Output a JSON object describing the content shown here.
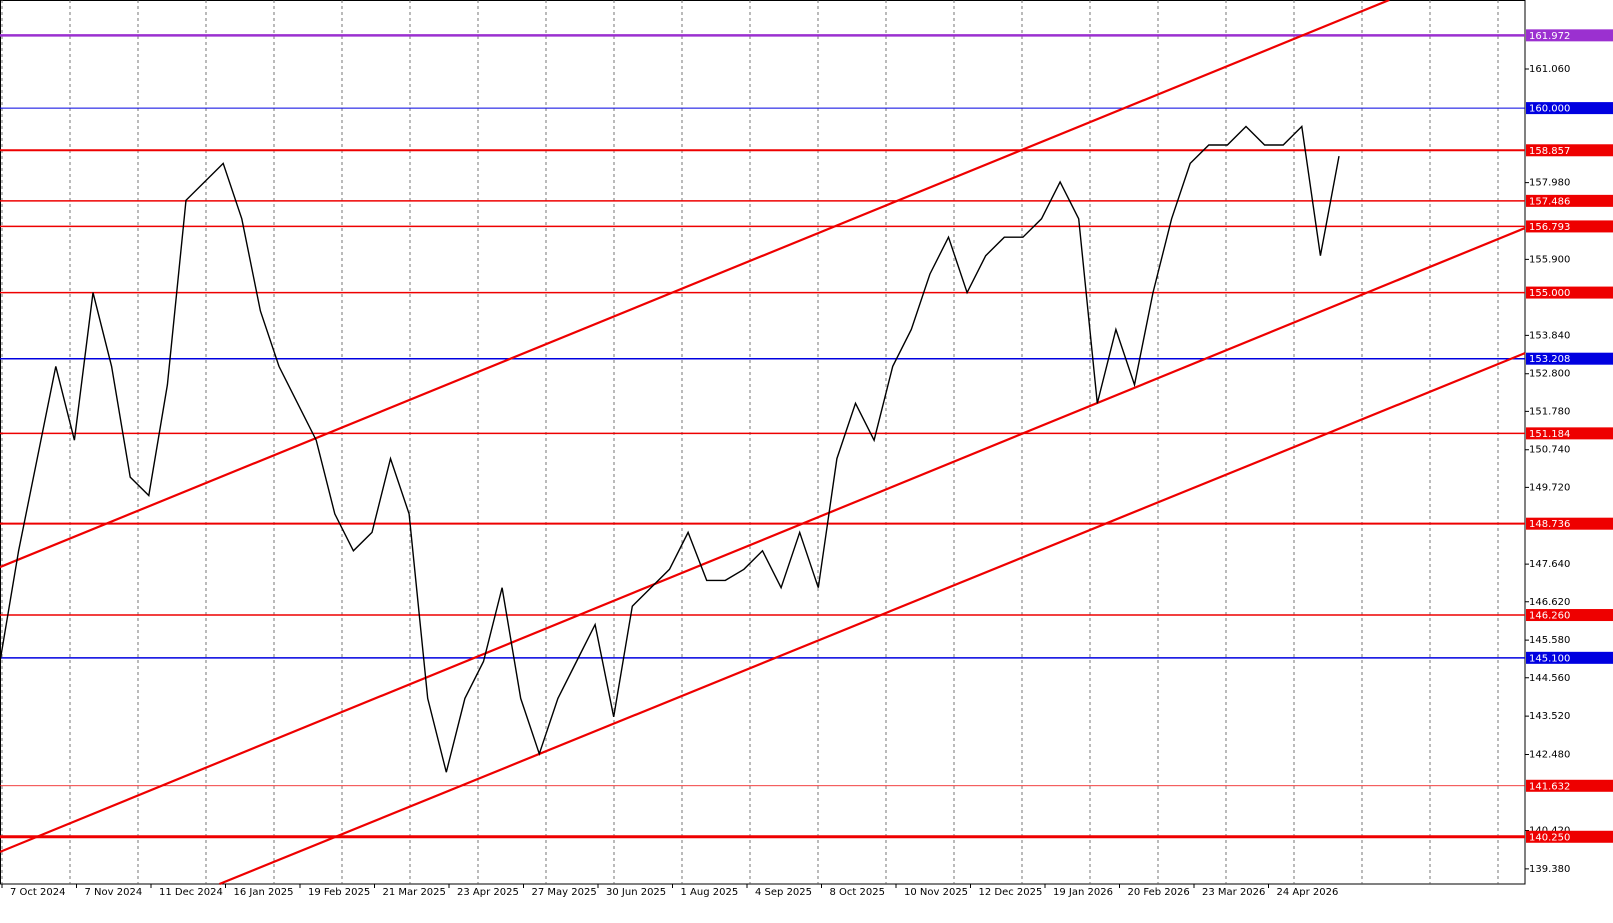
{
  "chart_data": {
    "type": "line",
    "grid": true,
    "line_color": "#000000",
    "x_labels": [
      "7 Oct 2024",
      "7 Nov 2024",
      "11 Dec 2024",
      "16 Jan 2025",
      "19 Feb 2025",
      "21 Mar 2025",
      "23 Apr 2025",
      "27 May 2025",
      "30 Jun 2025",
      "1 Aug 2025",
      "4 Sep 2025",
      "8 Oct 2025",
      "10 Nov 2025",
      "12 Dec 2025",
      "19 Jan 2026",
      "20 Feb 2026",
      "23 Mar 2026",
      "24 Apr 2026"
    ],
    "xlim": [
      0,
      82
    ],
    "ylim": [
      138.97,
      162.93
    ],
    "yticks": [
      {
        "value": 139.38,
        "label": "139.380"
      },
      {
        "value": 140.42,
        "label": "140.420"
      },
      {
        "value": 142.48,
        "label": "142.480"
      },
      {
        "value": 143.52,
        "label": "143.520"
      },
      {
        "value": 144.56,
        "label": "144.560"
      },
      {
        "value": 145.58,
        "label": "145.580"
      },
      {
        "value": 146.62,
        "label": "146.620"
      },
      {
        "value": 147.64,
        "label": "147.640"
      },
      {
        "value": 149.72,
        "label": "149.720"
      },
      {
        "value": 150.74,
        "label": "150.740"
      },
      {
        "value": 151.78,
        "label": "151.780"
      },
      {
        "value": 152.8,
        "label": "152.800"
      },
      {
        "value": 153.84,
        "label": "153.840"
      },
      {
        "value": 155.9,
        "label": "155.900"
      },
      {
        "value": 157.98,
        "label": "157.980"
      },
      {
        "value": 161.06,
        "label": "161.060"
      }
    ],
    "values": [
      145,
      148,
      150.5,
      153,
      151,
      155,
      153,
      150,
      149.5,
      152.5,
      157.5,
      158,
      158.5,
      157,
      154.5,
      153,
      152,
      151,
      149,
      148,
      148.5,
      150.5,
      149,
      144,
      142,
      144,
      145,
      147,
      144,
      142.5,
      144,
      145,
      146,
      143.5,
      146.5,
      147,
      147.5,
      148.5,
      147.2,
      147.2,
      147.5,
      148,
      147,
      148.5,
      147,
      150.5,
      152,
      151,
      153,
      154,
      155.5,
      156.5,
      155,
      156,
      156.5,
      156.5,
      157,
      158,
      157,
      152,
      154,
      152.5,
      155,
      157,
      158.5,
      159,
      159,
      159.5,
      159,
      159,
      159.5,
      156,
      158.7
    ],
    "levels": [
      {
        "value": 161.972,
        "color": "#9b30d0",
        "width": 2.5
      },
      {
        "value": 160,
        "label": "160.000",
        "color": "#0000e0",
        "width": 1
      },
      {
        "value": 158.857,
        "color": "#ee0000",
        "width": 2
      },
      {
        "value": 157.486,
        "color": "#ee0000",
        "width": 1.5
      },
      {
        "value": 156.793,
        "color": "#ee0000",
        "width": 1.5
      },
      {
        "value": 155,
        "label": "155.000",
        "color": "#ee0000",
        "width": 1.5
      },
      {
        "value": 153.208,
        "color": "#0000e0",
        "width": 1.5
      },
      {
        "value": 151.184,
        "color": "#ee0000",
        "width": 1.5
      },
      {
        "value": 148.736,
        "color": "#ee0000",
        "width": 2
      },
      {
        "value": 146.26,
        "label": "146.260",
        "color": "#ee0000",
        "width": 1.5
      },
      {
        "value": 145.1,
        "label": "145.100",
        "color": "#0000e0",
        "width": 1.5
      },
      {
        "value": 141.632,
        "color": "#ee0000",
        "width": 0.8
      },
      {
        "value": 140.25,
        "label": "140.250",
        "color": "#ee0000",
        "width": 3
      }
    ],
    "trendlines": [
      {
        "start": [
          0,
          147.56
        ],
        "end": [
          74.7,
          162.93
        ],
        "color": "#ee0000"
      },
      {
        "start": [
          0,
          139.84
        ],
        "end": [
          82,
          156.75
        ],
        "color": "#ee0000"
      },
      {
        "start": [
          11.8,
          138.97
        ],
        "end": [
          82,
          153.36
        ],
        "color": "#ee0000"
      }
    ]
  }
}
